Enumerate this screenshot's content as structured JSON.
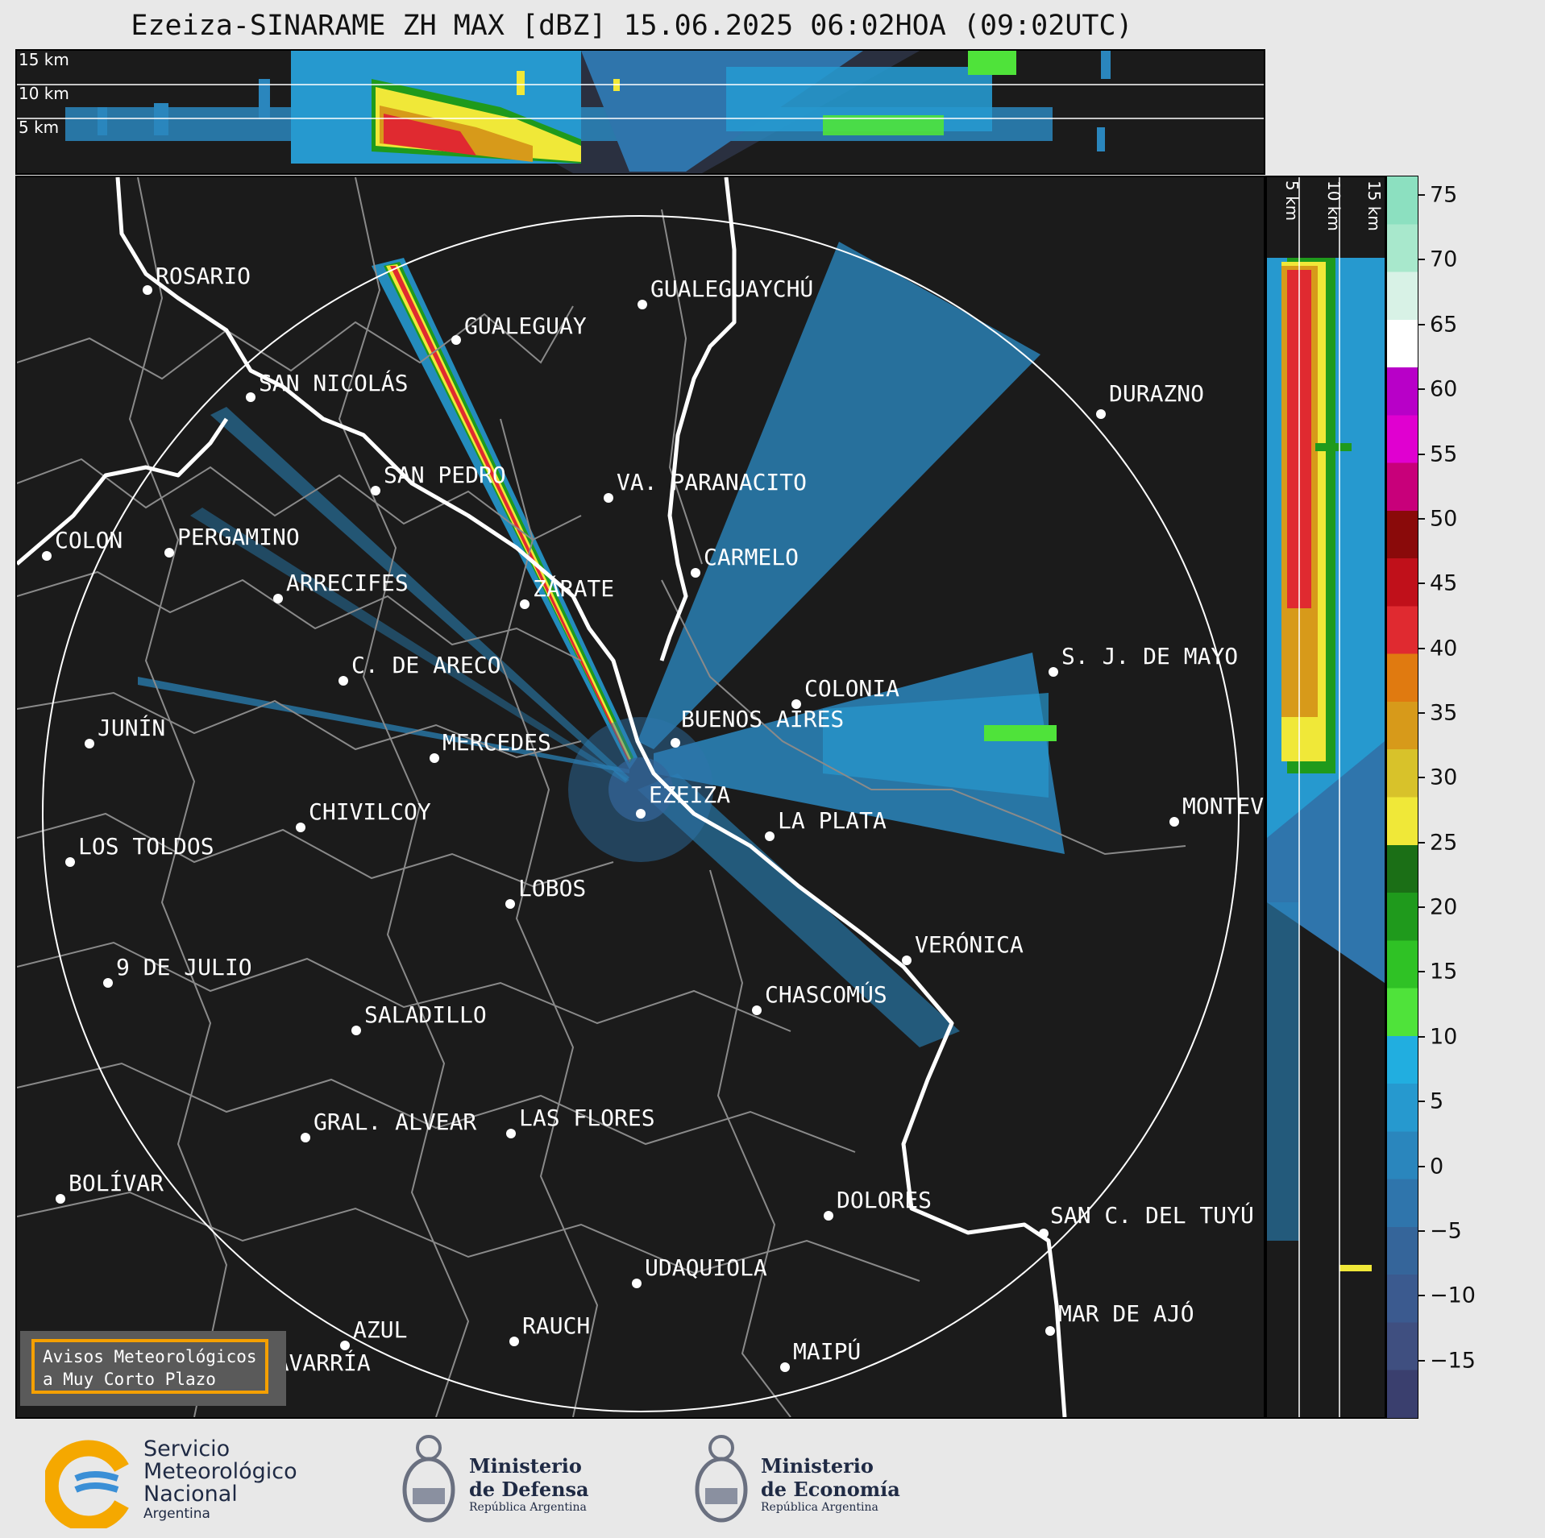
{
  "title": "Ezeiza-SINARAME ZH MAX [dBZ] 15.06.2025 06:02HOA (09:02UTC)",
  "top_panel": {
    "altitude_labels": [
      "15 km",
      "10 km",
      "5 km"
    ]
  },
  "side_panel": {
    "altitude_labels": [
      "5 km",
      "10 km",
      "15 km"
    ]
  },
  "colorbar": {
    "ticks": [
      "75",
      "70",
      "65",
      "60",
      "55",
      "50",
      "45",
      "40",
      "35",
      "30",
      "25",
      "20",
      "15",
      "10",
      "5",
      "0",
      "−5",
      "−10",
      "−15"
    ],
    "tick_values": [
      75,
      70,
      65,
      60,
      55,
      50,
      45,
      40,
      35,
      30,
      25,
      20,
      15,
      10,
      5,
      0,
      -5,
      -10,
      -15
    ],
    "min": -19.5,
    "max": 76.5,
    "colors": [
      "#3a3f6e",
      "#3f4f80",
      "#3b5a8f",
      "#35659a",
      "#2f75ac",
      "#2a86bd",
      "#2699cf",
      "#21aee0",
      "#4fe33a",
      "#2fc225",
      "#1f9a1c",
      "#1b6f16",
      "#f0e838",
      "#d8c22a",
      "#d79a1a",
      "#e07a10",
      "#e02a30",
      "#c0101a",
      "#8a0a0a",
      "#c8007a",
      "#e000d0",
      "#b800c8",
      "#ffffff",
      "#d8f2e6",
      "#a8e8cc",
      "#8ce0c0"
    ]
  },
  "cities": [
    {
      "name": "ROSARIO"
    },
    {
      "name": "GUALEGUAYCHÚ"
    },
    {
      "name": "GUALEGUAY"
    },
    {
      "name": "SAN NICOLÁS"
    },
    {
      "name": "DURAZNO"
    },
    {
      "name": "SAN PEDRO"
    },
    {
      "name": "VA. PARANACITO"
    },
    {
      "name": "COLON"
    },
    {
      "name": "PERGAMINO"
    },
    {
      "name": "CARMELO"
    },
    {
      "name": "ARRECIFES"
    },
    {
      "name": "ZÁRATE"
    },
    {
      "name": "S. J. DE MAYO"
    },
    {
      "name": "C. DE ARECO"
    },
    {
      "name": "COLONIA"
    },
    {
      "name": "JUNÍN"
    },
    {
      "name": "BUENOS AIRES"
    },
    {
      "name": "MERCEDES"
    },
    {
      "name": "EZEIZA"
    },
    {
      "name": "MONTEVIDEO"
    },
    {
      "name": "CHIVILCOY"
    },
    {
      "name": "LA PLATA"
    },
    {
      "name": "LOS TOLDOS"
    },
    {
      "name": "LOBOS"
    },
    {
      "name": "VERÓNICA"
    },
    {
      "name": "9 DE JULIO"
    },
    {
      "name": "CHASCOMÚS"
    },
    {
      "name": "SALADILLO"
    },
    {
      "name": "GRAL. ALVEAR"
    },
    {
      "name": "LAS FLORES"
    },
    {
      "name": "BOLÍVAR"
    },
    {
      "name": "DOLORES"
    },
    {
      "name": "SAN C. DEL TUYÚ"
    },
    {
      "name": "UDAQUIOLA"
    },
    {
      "name": "AZUL"
    },
    {
      "name": "RAUCH"
    },
    {
      "name": "MAR DE AJÓ"
    },
    {
      "name": "OLAVARRÍA"
    },
    {
      "name": "MAIPÚ"
    }
  ],
  "alert_box": {
    "line1": "Avisos Meteorológicos",
    "line2": "a Muy Corto Plazo"
  },
  "footer": {
    "smn": {
      "line1": "Servicio",
      "line2": "Meteorológico",
      "line3": "Nacional",
      "line4": "Argentina"
    },
    "defensa": {
      "line1": "Ministerio",
      "line2": "de Defensa",
      "line3": "República Argentina"
    },
    "economia": {
      "line1": "Ministerio",
      "line2": "de Economía",
      "line3": "República Argentina"
    }
  }
}
